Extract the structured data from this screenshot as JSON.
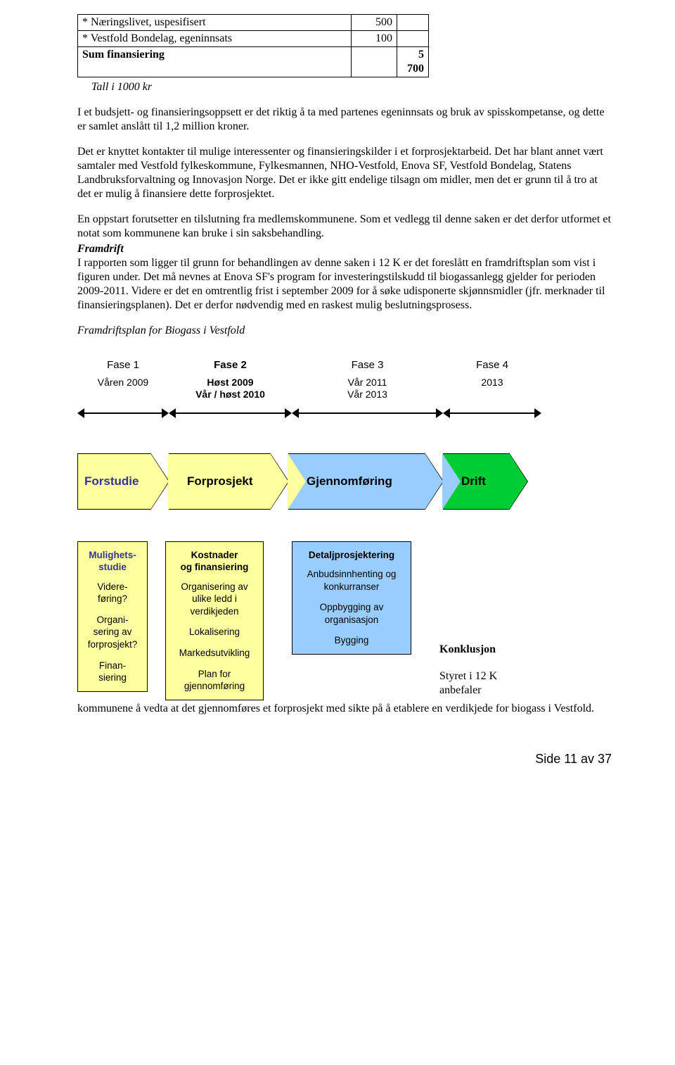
{
  "finance_table": {
    "rows": [
      {
        "label": "* Næringslivet, uspesifisert",
        "value": "500"
      },
      {
        "label": "* Vestfold Bondelag, egeninnsats",
        "value": "100"
      }
    ],
    "sum_label": "Sum finansiering",
    "sum_value": "5 700"
  },
  "caption": "Tall i 1000 kr",
  "paragraphs": {
    "p1": "I et budsjett- og finansieringsoppsett er det riktig å ta med partenes egeninnsats og bruk av spisskompetanse, og dette er samlet anslått til 1,2 million kroner.",
    "p2": "Det er knyttet kontakter til mulige interessenter og finansieringskilder i et forprosjektarbeid. Det har blant annet vært samtaler med Vestfold fylkeskommune, Fylkesmannen, NHO-Vestfold, Enova SF, Vestfold Bondelag, Statens Landbruksforvaltning og Innovasjon Norge. Det er ikke gitt endelige tilsagn om midler, men det er grunn til å tro at det er mulig å finansiere dette forprosjektet.",
    "p3": "En oppstart forutsetter en tilslutning fra medlemskommunene. Som et vedlegg til denne saken er det derfor utformet et notat som kommunene kan bruke i sin saksbehandling.",
    "framdrift_head": "Framdrift",
    "p4": "I rapporten som ligger til grunn for behandlingen av denne saken i 12 K er det foreslått en framdriftsplan som vist i figuren under. Det må nevnes at Enova SF's program for investeringstilskudd til biogassanlegg gjelder for perioden 2009-2011. Videre er det en omtrentlig frist i september 2009 for å søke udisponerte skjønnsmidler (jfr. merknader til finansieringsplanen). Det er derfor nødvendig med en raskest mulig beslutningsprosess.",
    "plan_caption": "Framdriftsplan for Biogass i Vestfold"
  },
  "phases": {
    "p1": {
      "label": "Fase 1",
      "sub": "Våren 2009"
    },
    "p2": {
      "label": "Fase 2",
      "sub": "Høst 2009\nVår / høst 2010"
    },
    "p3": {
      "label": "Fase 3",
      "sub": "Vår 2011\nVår 2013"
    },
    "p4": {
      "label": "Fase 4",
      "sub": "2013"
    }
  },
  "chevrons": {
    "c1": {
      "label": "Forstudie",
      "fill": "#feff9f",
      "text": "#333399"
    },
    "c2": {
      "label": "Forprosjekt",
      "fill": "#feff9f",
      "text": "#000000"
    },
    "c3": {
      "label": "Gjennomføring",
      "fill": "#99ccff",
      "text": "#000000"
    },
    "c4": {
      "label": "Drift",
      "fill": "#00cc33",
      "text": "#000000"
    },
    "widths": {
      "c1": 130,
      "c2": 170,
      "c3": 220,
      "c4": 120
    }
  },
  "infoboxes": {
    "b1": {
      "fill": "#feff9f",
      "hdr_color": "#333399",
      "hdr": "Mulighets-\nstudie",
      "items": [
        "Videre-\nføring?",
        "Organi-\nsering av\nforprosjekt?",
        "Finan-\nsiering"
      ]
    },
    "b2": {
      "fill": "#feff9f",
      "hdr_color": "#000000",
      "hdr": "Kostnader\nog finansiering",
      "items": [
        "Organisering av\nulike ledd i\nverdikjeden",
        "Lokalisering",
        "Markedsutvikling",
        "Plan for\ngjennomføring"
      ]
    },
    "b3": {
      "fill": "#99ccff",
      "hdr_color": "#000000",
      "hdr": "Detaljprosjektering",
      "items": [
        "Anbudsinnhenting og\nkonkurranser",
        "Oppbygging av\norganisasjon",
        "Bygging"
      ]
    }
  },
  "konklusjon": {
    "head": "Konklusjon",
    "body1": "Styret i 12 K\nanbefaler",
    "tail": "kommunene å vedta at det gjennomføres et forprosjekt med sikte på å etablere en verdikjede for biogass i Vestfold."
  },
  "footer": "Side 11 av 37"
}
